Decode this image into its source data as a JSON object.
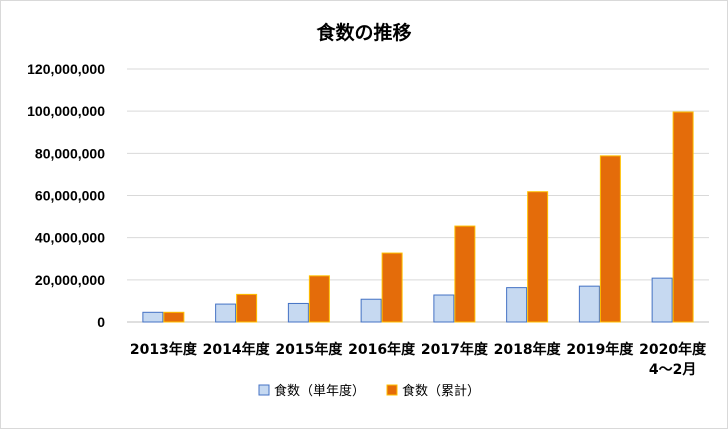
{
  "chart_data": {
    "type": "bar",
    "title": "食数の推移",
    "categories": [
      [
        "2013年度"
      ],
      [
        "2014年度"
      ],
      [
        "2015年度"
      ],
      [
        "2016年度"
      ],
      [
        "2017年度"
      ],
      [
        "2018年度"
      ],
      [
        "2019年度"
      ],
      [
        "2020年度",
        "4～2月"
      ]
    ],
    "series": [
      {
        "name": "食数（単年度）",
        "color": "#c6d9f1",
        "border": "#4472c4",
        "values": [
          4600000,
          8500000,
          8800000,
          10800000,
          12800000,
          16300000,
          17000000,
          20800000
        ]
      },
      {
        "name": "食数（累計）",
        "color": "#e46c0a",
        "border": "#ffc000",
        "values": [
          4600000,
          13100000,
          21900000,
          32700000,
          45500000,
          61800000,
          78800000,
          99600000
        ]
      }
    ],
    "ylim": [
      0,
      120000000
    ],
    "yticks": [
      "0",
      "20,000,000",
      "40,000,000",
      "60,000,000",
      "80,000,000",
      "100,000,000",
      "120,000,000"
    ],
    "xlabel": "",
    "ylabel": "",
    "grid": true,
    "legend": "bottom"
  }
}
